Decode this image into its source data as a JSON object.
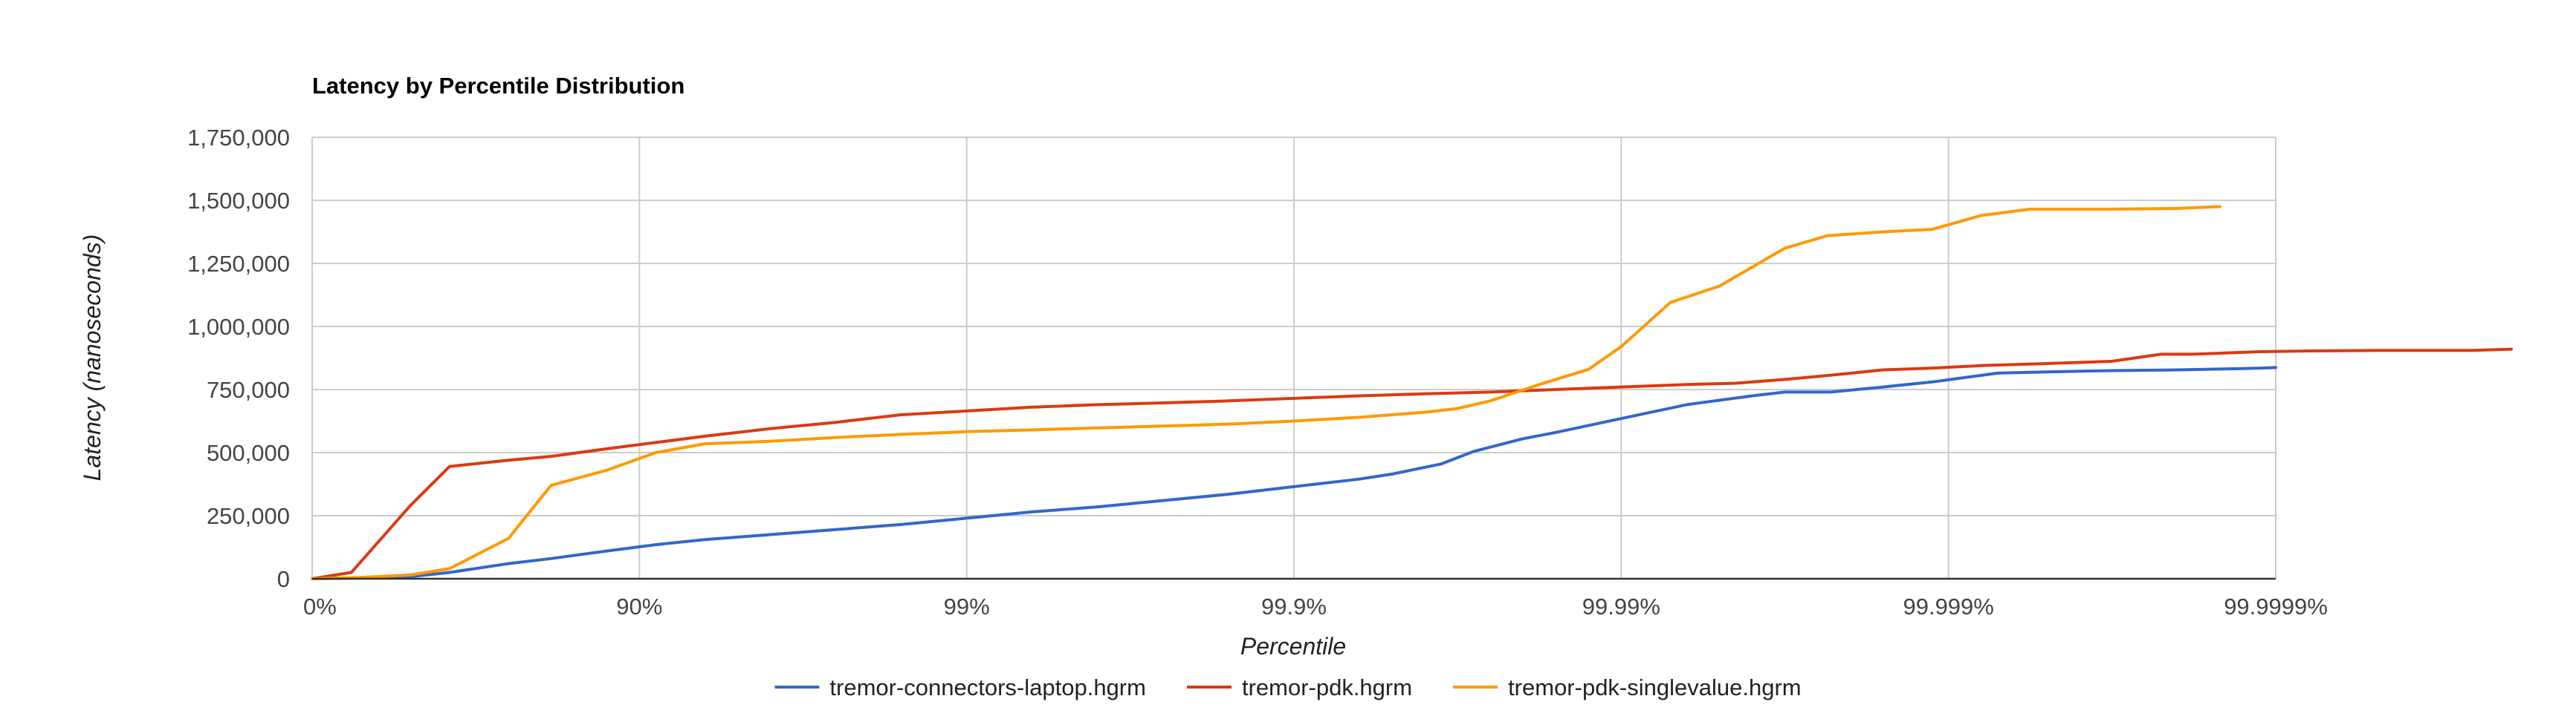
{
  "chart_data": {
    "type": "line",
    "title": "Latency by Percentile Distribution",
    "xlabel": "Percentile",
    "ylabel": "Latency (nanoseconds)",
    "x_scale": "percentile-log (nines)",
    "x_tick_labels": [
      "0%",
      "90%",
      "99%",
      "99.9%",
      "99.99%",
      "99.999%",
      "99.9999%"
    ],
    "y_tick_labels": [
      "0",
      "250,000",
      "500,000",
      "750,000",
      "1,000,000",
      "1,250,000",
      "1,500,000",
      "1,750,000"
    ],
    "ylim": [
      0,
      1750000
    ],
    "y_ticks": [
      0,
      250000,
      500000,
      750000,
      1000000,
      1250000,
      1500000,
      1750000
    ],
    "grid": true,
    "legend_position": "bottom",
    "series": [
      {
        "name": "tremor-connectors-laptop.hgrm",
        "color": "#3366cc",
        "points": [
          [
            0,
            0
          ],
          [
            0.1,
            2000
          ],
          [
            0.3,
            8000
          ],
          [
            0.42,
            25000
          ],
          [
            0.6,
            60000
          ],
          [
            0.73,
            80000
          ],
          [
            0.9,
            110000
          ],
          [
            1.05,
            135000
          ],
          [
            1.2,
            155000
          ],
          [
            1.4,
            175000
          ],
          [
            1.6,
            195000
          ],
          [
            1.8,
            215000
          ],
          [
            2.0,
            240000
          ],
          [
            2.2,
            265000
          ],
          [
            2.4,
            285000
          ],
          [
            2.6,
            310000
          ],
          [
            2.8,
            335000
          ],
          [
            3.0,
            365000
          ],
          [
            3.2,
            395000
          ],
          [
            3.3,
            415000
          ],
          [
            3.45,
            455000
          ],
          [
            3.55,
            505000
          ],
          [
            3.7,
            555000
          ],
          [
            3.8,
            580000
          ],
          [
            4.0,
            635000
          ],
          [
            4.2,
            690000
          ],
          [
            4.4,
            725000
          ],
          [
            4.5,
            740000
          ],
          [
            4.64,
            740000
          ],
          [
            4.8,
            760000
          ],
          [
            4.95,
            780000
          ],
          [
            5.15,
            815000
          ],
          [
            5.3,
            820000
          ],
          [
            5.5,
            825000
          ],
          [
            5.7,
            828000
          ],
          [
            5.9,
            833000
          ],
          [
            6.0,
            837000
          ]
        ]
      },
      {
        "name": "tremor-pdk.hgrm",
        "color": "#dc3912",
        "points": [
          [
            0,
            0
          ],
          [
            0.12,
            25000
          ],
          [
            0.3,
            290000
          ],
          [
            0.42,
            445000
          ],
          [
            0.6,
            470000
          ],
          [
            0.73,
            485000
          ],
          [
            0.9,
            515000
          ],
          [
            1.05,
            540000
          ],
          [
            1.2,
            565000
          ],
          [
            1.4,
            595000
          ],
          [
            1.6,
            620000
          ],
          [
            1.8,
            650000
          ],
          [
            2.0,
            665000
          ],
          [
            2.2,
            680000
          ],
          [
            2.4,
            690000
          ],
          [
            2.6,
            697000
          ],
          [
            2.8,
            705000
          ],
          [
            3.0,
            715000
          ],
          [
            3.2,
            725000
          ],
          [
            3.4,
            733000
          ],
          [
            3.6,
            740000
          ],
          [
            3.8,
            750000
          ],
          [
            4.0,
            760000
          ],
          [
            4.2,
            770000
          ],
          [
            4.35,
            775000
          ],
          [
            4.5,
            790000
          ],
          [
            4.65,
            808000
          ],
          [
            4.8,
            828000
          ],
          [
            4.95,
            835000
          ],
          [
            5.1,
            845000
          ],
          [
            5.3,
            853000
          ],
          [
            5.5,
            862000
          ],
          [
            5.65,
            890000
          ],
          [
            5.75,
            890000
          ],
          [
            5.95,
            900000
          ],
          [
            6.1,
            903000
          ],
          [
            6.3,
            905000
          ],
          [
            6.6,
            905000
          ],
          [
            6.72,
            910000
          ]
        ]
      },
      {
        "name": "tremor-pdk-singlevalue.hgrm",
        "color": "#ff9900",
        "points": [
          [
            0,
            0
          ],
          [
            0.15,
            5000
          ],
          [
            0.3,
            15000
          ],
          [
            0.42,
            40000
          ],
          [
            0.6,
            160000
          ],
          [
            0.73,
            370000
          ],
          [
            0.9,
            430000
          ],
          [
            1.05,
            500000
          ],
          [
            1.2,
            535000
          ],
          [
            1.4,
            545000
          ],
          [
            1.6,
            560000
          ],
          [
            1.8,
            572000
          ],
          [
            2.0,
            583000
          ],
          [
            2.2,
            590000
          ],
          [
            2.4,
            598000
          ],
          [
            2.6,
            605000
          ],
          [
            2.8,
            613000
          ],
          [
            3.0,
            625000
          ],
          [
            3.2,
            640000
          ],
          [
            3.4,
            660000
          ],
          [
            3.5,
            675000
          ],
          [
            3.6,
            705000
          ],
          [
            3.75,
            770000
          ],
          [
            3.9,
            830000
          ],
          [
            4.0,
            920000
          ],
          [
            4.15,
            1095000
          ],
          [
            4.3,
            1160000
          ],
          [
            4.5,
            1310000
          ],
          [
            4.63,
            1360000
          ],
          [
            4.8,
            1375000
          ],
          [
            4.95,
            1385000
          ],
          [
            5.1,
            1440000
          ],
          [
            5.25,
            1465000
          ],
          [
            5.5,
            1465000
          ],
          [
            5.7,
            1468000
          ],
          [
            5.83,
            1475000
          ]
        ]
      }
    ]
  }
}
